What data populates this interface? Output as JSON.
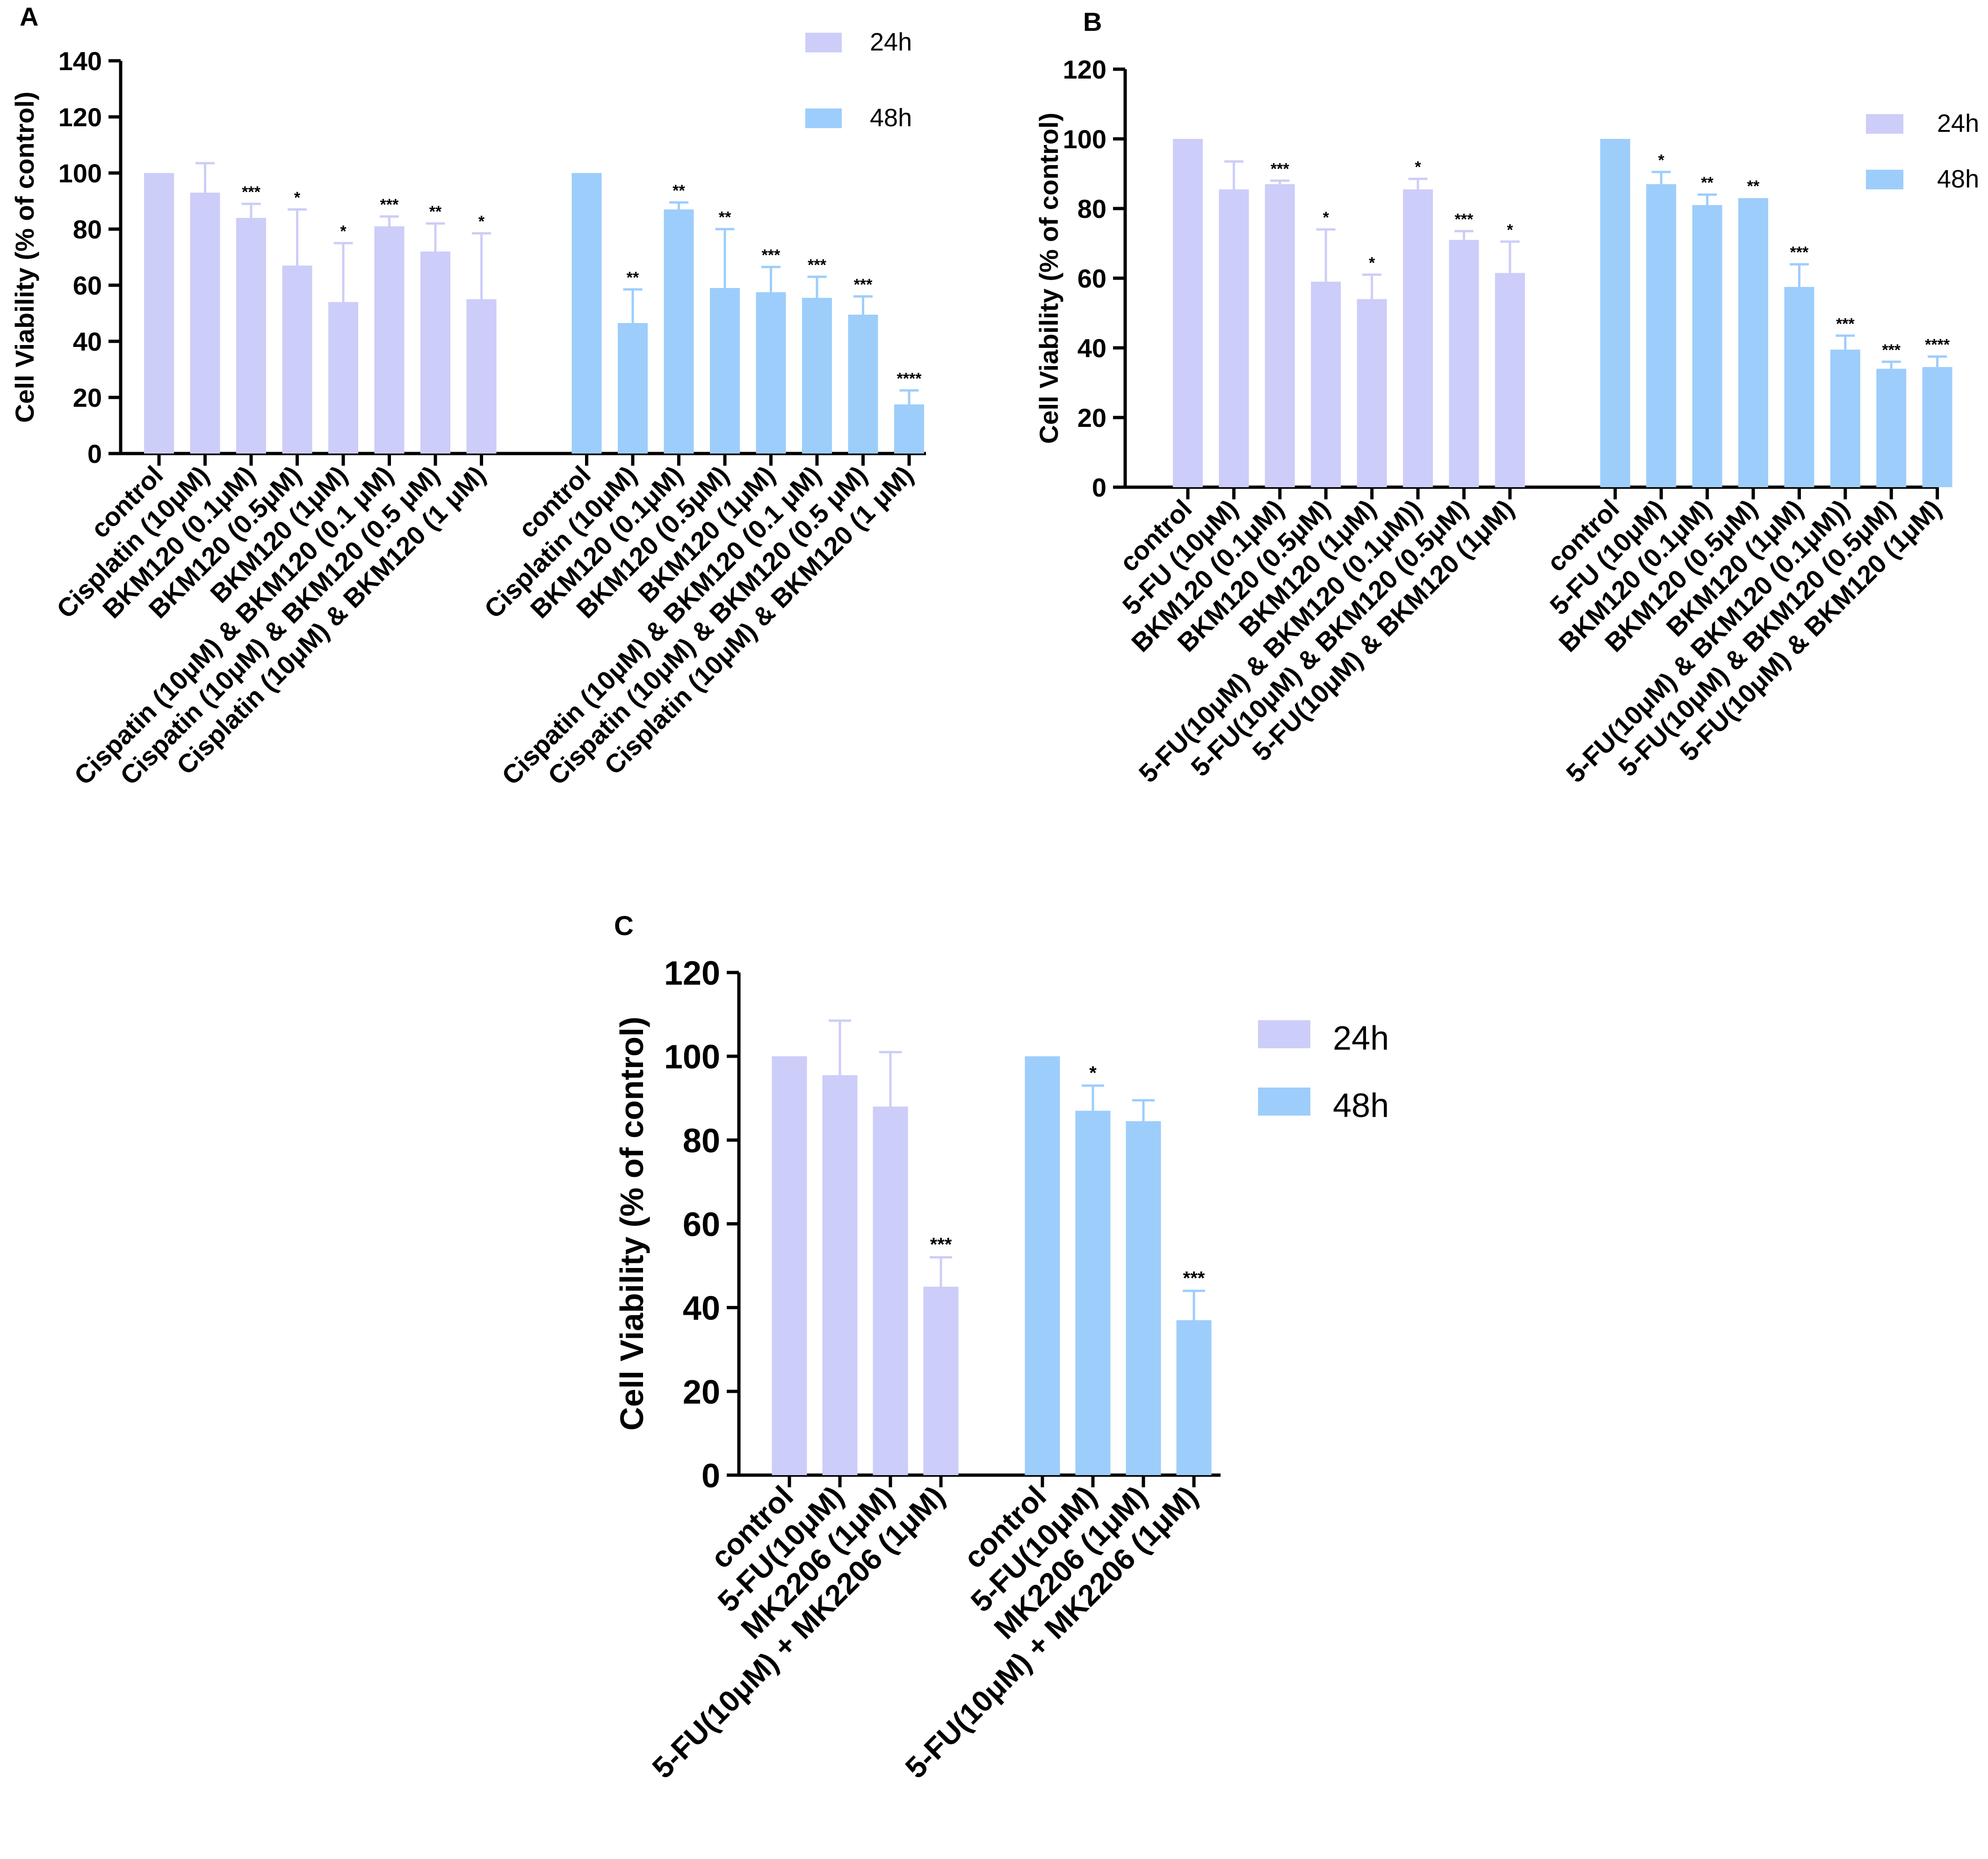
{
  "colors": {
    "h24": "#cdcdf9",
    "h48": "#9dcdfb",
    "axis": "#000000"
  },
  "chart_data": [
    {
      "panel": "A",
      "type": "bar",
      "ylabel": "Cell Viability (% of control)",
      "ylim": [
        0,
        140
      ],
      "yticks": [
        0,
        20,
        40,
        60,
        80,
        100,
        120,
        140
      ],
      "legend": [
        "24h",
        "48h"
      ],
      "legend_position": "top-right",
      "categories": [
        "control",
        "Cisplatin (10μM)",
        "BKM120 (0.1μM)",
        "BKM120 (0.5μM)",
        "BKM120 (1μM)",
        "Cispatin (10μM) & BKM120 (0.1 μM)",
        "Cispatin (10μM) & BKM120 (0.5 μM)",
        "Cisplatin (10μM) & BKM120 (1 μM)"
      ],
      "series": [
        {
          "name": "24h",
          "values": [
            100,
            93,
            84,
            67,
            54,
            81,
            72,
            55
          ],
          "errors": [
            0,
            10.5,
            5,
            20,
            21,
            3.5,
            10,
            23.5
          ],
          "sig": [
            "",
            "",
            "***",
            "*",
            "*",
            "***",
            "**",
            "*"
          ]
        },
        {
          "name": "48h",
          "values": [
            100,
            46.5,
            87,
            59,
            57.5,
            55.5,
            49.5,
            17.5
          ],
          "errors": [
            0,
            12,
            2.5,
            21,
            9,
            7.5,
            6.5,
            5
          ],
          "sig": [
            "",
            "**",
            "**",
            "**",
            "***",
            "***",
            "***",
            "****"
          ]
        }
      ]
    },
    {
      "panel": "B",
      "type": "bar",
      "ylabel": "Cell Viability (% of control)",
      "ylim": [
        0,
        120
      ],
      "yticks": [
        0,
        20,
        40,
        60,
        80,
        100,
        120
      ],
      "legend": [
        "24h",
        "48h"
      ],
      "legend_position": "top-right",
      "categories": [
        "control",
        "5-FU (10μM)",
        "BKM120 (0.1μM)",
        "BKM120 (0.5μM)",
        "BKM120 (1μM)",
        "5-FU(10μM) & BKM120 (0.1μM))",
        "5-FU(10μM) & BKM120 (0.5μM)",
        "5-FU(10μM) & BKM120 (1μM)"
      ],
      "series": [
        {
          "name": "24h",
          "values": [
            100,
            85.5,
            87,
            59,
            54,
            85.5,
            71,
            61.5
          ],
          "errors": [
            0,
            8,
            1,
            15,
            7,
            3,
            2.5,
            9
          ],
          "sig": [
            "",
            "",
            "***",
            "*",
            "*",
            "*",
            "***",
            "*"
          ]
        },
        {
          "name": "48h",
          "values": [
            100,
            87,
            81,
            83,
            57.5,
            39.5,
            34,
            34.5
          ],
          "errors": [
            0,
            3.5,
            3,
            0,
            6.5,
            4,
            2,
            3
          ],
          "sig": [
            "",
            "*",
            "**",
            "**",
            "***",
            "***",
            "***",
            "****"
          ]
        }
      ]
    },
    {
      "panel": "C",
      "type": "bar",
      "ylabel": "Cell Viability (% of control)",
      "ylim": [
        0,
        120
      ],
      "yticks": [
        0,
        20,
        40,
        60,
        80,
        100,
        120
      ],
      "legend": [
        "24h",
        "48h"
      ],
      "legend_position": "top-right",
      "categories": [
        "control",
        "5-FU(10μM)",
        "MK2206 (1μM)",
        "5-FU(10μM) + MK2206 (1μM)"
      ],
      "series": [
        {
          "name": "24h",
          "values": [
            100,
            95.5,
            88,
            45
          ],
          "errors": [
            0,
            13,
            13,
            7
          ],
          "sig": [
            "",
            "",
            "",
            "***"
          ]
        },
        {
          "name": "48h",
          "values": [
            100,
            87,
            84.5,
            37
          ],
          "errors": [
            0,
            6,
            5,
            7
          ],
          "sig": [
            "",
            "*",
            "",
            "***"
          ]
        }
      ]
    }
  ]
}
